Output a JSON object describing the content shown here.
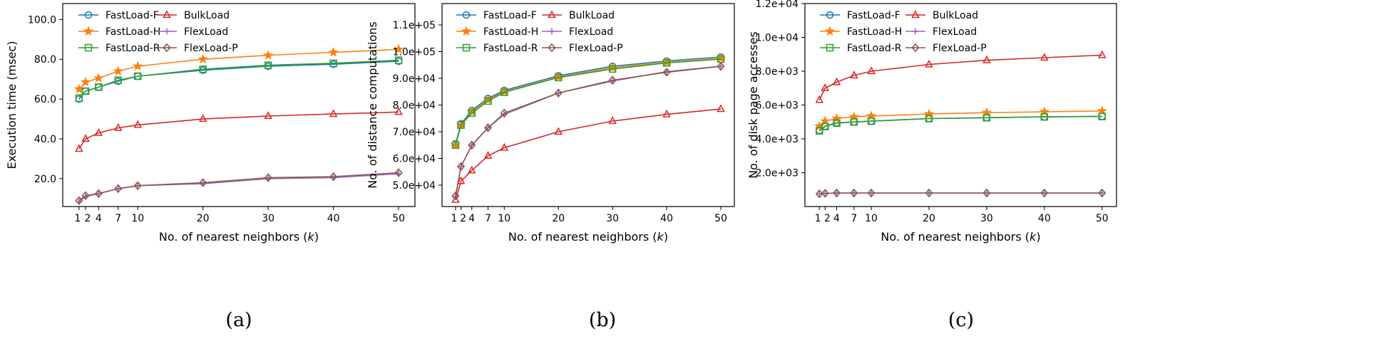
{
  "chart_data": [
    {
      "type": "line",
      "panel_label": "(a)",
      "xlabel": "No. of nearest neighbors (",
      "xlabel_var": "k",
      "xlabel_end": ")",
      "ylabel": "Execution time (msec)",
      "x": [
        1,
        2,
        4,
        7,
        10,
        20,
        30,
        40,
        50
      ],
      "xticks": [
        1,
        2,
        4,
        7,
        10,
        20,
        30,
        40,
        50
      ],
      "xtick_labels": [
        "1",
        "2",
        "4",
        "7",
        "10",
        "20",
        "30",
        "40",
        "50"
      ],
      "xlim": [
        -1.5,
        52.5
      ],
      "ylim": [
        6,
        108
      ],
      "yticks": [
        20,
        40,
        60,
        80,
        100
      ],
      "ytick_labels": [
        "20.0",
        "40.0",
        "60.0",
        "80.0",
        "100.0"
      ],
      "series": [
        {
          "name": "FastLoad-F",
          "color": "#1f77b4",
          "marker": "circle",
          "values": [
            60,
            64,
            66,
            69,
            71.5,
            74.5,
            76.5,
            77.5,
            79
          ]
        },
        {
          "name": "FastLoad-H",
          "color": "#ff7f0e",
          "marker": "star",
          "values": [
            65,
            68.5,
            70.5,
            74,
            76.5,
            80,
            82,
            83.5,
            85
          ]
        },
        {
          "name": "FastLoad-R",
          "color": "#2ca02c",
          "marker": "square",
          "values": [
            60.5,
            64,
            66,
            69.5,
            71.5,
            75,
            77,
            78,
            79.5
          ]
        },
        {
          "name": "BulkLoad",
          "color": "#d62728",
          "marker": "triangle",
          "values": [
            35,
            40,
            43,
            45.5,
            47,
            50,
            51.5,
            52.5,
            53.5
          ]
        },
        {
          "name": "FlexLoad",
          "color": "#9467bd",
          "marker": "plus",
          "values": [
            8.5,
            11,
            12.5,
            15,
            16.5,
            17.5,
            20,
            20.5,
            22.5
          ]
        },
        {
          "name": "FlexLoad-P",
          "color": "#8c564b",
          "marker": "diamond",
          "values": [
            9,
            11.5,
            12.5,
            15,
            16.5,
            18,
            20.5,
            21,
            23
          ]
        }
      ]
    },
    {
      "type": "line",
      "panel_label": "(b)",
      "xlabel": "No. of nearest neighbors (",
      "xlabel_var": "k",
      "xlabel_end": ")",
      "ylabel": "No. of distance computations",
      "x": [
        1,
        2,
        4,
        7,
        10,
        20,
        30,
        40,
        50
      ],
      "xticks": [
        1,
        2,
        4,
        7,
        10,
        20,
        30,
        40,
        50
      ],
      "xtick_labels": [
        "1",
        "2",
        "4",
        "7",
        "10",
        "20",
        "30",
        "40",
        "50"
      ],
      "xlim": [
        -1.5,
        52.5
      ],
      "ylim": [
        42000,
        118000
      ],
      "yticks": [
        50000,
        60000,
        70000,
        80000,
        90000,
        100000,
        110000
      ],
      "ytick_labels": [
        "5.0e+04",
        "6.0e+04",
        "7.0e+04",
        "8.0e+04",
        "9.0e+04",
        "1.0e+05",
        "1.1e+05"
      ],
      "series": [
        {
          "name": "FastLoad-F",
          "color": "#1f77b4",
          "marker": "circle",
          "values": [
            65500,
            73000,
            78000,
            82500,
            85500,
            91000,
            94500,
            96500,
            98000
          ]
        },
        {
          "name": "FastLoad-H",
          "color": "#ff7f0e",
          "marker": "star",
          "values": [
            65000,
            72500,
            77500,
            82000,
            85000,
            90500,
            94000,
            96000,
            97500
          ]
        },
        {
          "name": "FastLoad-R",
          "color": "#2ca02c",
          "marker": "square",
          "values": [
            65000,
            72500,
            77000,
            81500,
            84800,
            90300,
            93500,
            95800,
            97200
          ]
        },
        {
          "name": "BulkLoad",
          "color": "#d62728",
          "marker": "triangle",
          "values": [
            44500,
            51500,
            55500,
            61000,
            64000,
            70000,
            74000,
            76500,
            78500
          ]
        },
        {
          "name": "FlexLoad",
          "color": "#9467bd",
          "marker": "plus",
          "values": [
            45800,
            57000,
            65000,
            71500,
            76500,
            84500,
            89000,
            92500,
            94500
          ]
        },
        {
          "name": "FlexLoad-P",
          "color": "#8c564b",
          "marker": "diamond",
          "values": [
            46000,
            57000,
            65000,
            71500,
            77000,
            84500,
            89300,
            92300,
            94500
          ]
        }
      ]
    },
    {
      "type": "line",
      "panel_label": "(c)",
      "xlabel": "No. of nearest neighbors (",
      "xlabel_var": "k",
      "xlabel_end": ")",
      "ylabel": "No. of disk page accesses",
      "x": [
        1,
        2,
        4,
        7,
        10,
        20,
        30,
        40,
        50
      ],
      "xticks": [
        1,
        2,
        4,
        7,
        10,
        20,
        30,
        40,
        50
      ],
      "xtick_labels": [
        "1",
        "2",
        "4",
        "7",
        "10",
        "20",
        "30",
        "40",
        "50"
      ],
      "xlim": [
        -1.5,
        52.5
      ],
      "ylim": [
        0,
        12000
      ],
      "yticks": [
        2000,
        4000,
        6000,
        8000,
        10000,
        12000
      ],
      "ytick_labels": [
        "2.0e+03",
        "4.0e+03",
        "6.0e+03",
        "8.0e+03",
        "1.0e+04",
        "1.2e+04"
      ],
      "series": [
        {
          "name": "FastLoad-F",
          "color": "#1f77b4",
          "marker": "circle",
          "values": [
            4500,
            4750,
            4950,
            5000,
            5050,
            5200,
            5250,
            5300,
            5330
          ]
        },
        {
          "name": "FastLoad-H",
          "color": "#ff7f0e",
          "marker": "star",
          "values": [
            4750,
            5050,
            5200,
            5300,
            5350,
            5470,
            5550,
            5600,
            5650
          ]
        },
        {
          "name": "FastLoad-R",
          "color": "#2ca02c",
          "marker": "square",
          "values": [
            4480,
            4730,
            4930,
            5000,
            5050,
            5200,
            5250,
            5300,
            5320
          ]
        },
        {
          "name": "BulkLoad",
          "color": "#d62728",
          "marker": "triangle",
          "values": [
            6300,
            7000,
            7350,
            7750,
            8000,
            8400,
            8650,
            8800,
            8950
          ]
        },
        {
          "name": "FlexLoad",
          "color": "#9467bd",
          "marker": "plus",
          "values": [
            750,
            780,
            800,
            800,
            800,
            800,
            800,
            800,
            800
          ]
        },
        {
          "name": "FlexLoad-P",
          "color": "#8c564b",
          "marker": "diamond",
          "values": [
            750,
            780,
            800,
            800,
            800,
            800,
            800,
            800,
            800
          ]
        }
      ]
    }
  ]
}
